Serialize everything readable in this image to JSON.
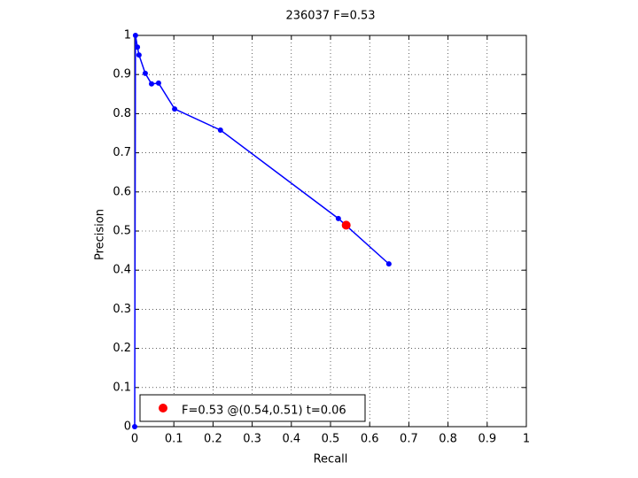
{
  "chart_data": {
    "type": "line",
    "title": "236037 F=0.53",
    "xlabel": "Recall",
    "ylabel": "Precision",
    "xlim": [
      0,
      1
    ],
    "ylim": [
      0,
      1
    ],
    "xticks": [
      0,
      0.1,
      0.2,
      0.3,
      0.4,
      0.5,
      0.6,
      0.7,
      0.8,
      0.9,
      1
    ],
    "yticks": [
      0,
      0.1,
      0.2,
      0.3,
      0.4,
      0.5,
      0.6,
      0.7,
      0.8,
      0.9,
      1
    ],
    "grid": true,
    "legend": "lower left",
    "series": [
      {
        "color": "#0000ff",
        "marker": true,
        "x": [
          0,
          0.002,
          0.007,
          0.011,
          0.027,
          0.043,
          0.061,
          0.102,
          0.219,
          0.52,
          0.649
        ],
        "values": [
          0,
          1.0,
          0.97,
          0.95,
          0.903,
          0.876,
          0.878,
          0.812,
          0.758,
          0.532,
          0.416
        ]
      },
      {
        "name": "F=0.53 @(0.54,0.51) t=0.06",
        "color": "#ff0000",
        "x": [
          0.54
        ],
        "values": [
          0.515
        ]
      }
    ]
  }
}
